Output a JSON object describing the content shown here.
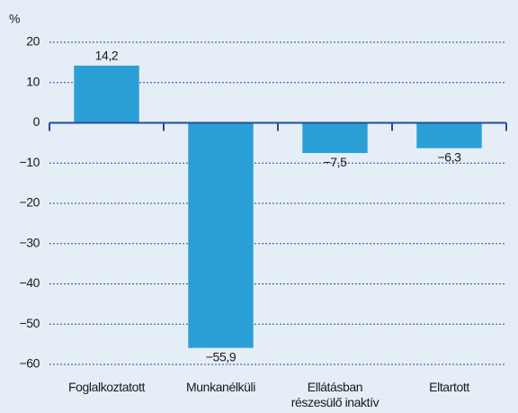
{
  "chart_data": {
    "type": "bar",
    "y_label": "%",
    "categories": [
      "Foglalkoztatott",
      "Munkanélküli",
      "Ellátásban részesülő inaktív",
      "Eltartott"
    ],
    "values": [
      14.2,
      -55.9,
      -7.5,
      -6.3
    ],
    "value_labels": [
      "14,2",
      "−55,9",
      "−7,5",
      "−6,3"
    ],
    "color": "#2a9fd6",
    "ylim": [
      -60,
      20
    ],
    "yticks": [
      20,
      10,
      0,
      {
        "value": -10,
        "label": "−10"
      },
      {
        "value": -20,
        "label": "−20"
      },
      {
        "value": -30,
        "label": "−30"
      },
      {
        "value": -40,
        "label": "−40"
      },
      {
        "value": -50,
        "label": "−50"
      },
      {
        "value": -60,
        "label": "−60"
      }
    ],
    "grid": true
  }
}
